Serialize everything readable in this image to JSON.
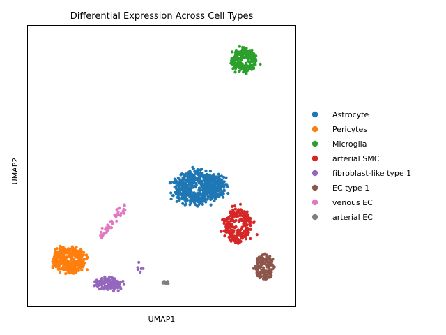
{
  "chart_data": {
    "type": "scatter",
    "title": "Differential Expression Across Cell Types",
    "xlabel": "UMAP1",
    "ylabel": "UMAP2",
    "xlim": [
      0,
      10
    ],
    "ylim": [
      0,
      10
    ],
    "ticks_shown": false,
    "grid": false,
    "legend_position": "right",
    "series": [
      {
        "name": "Astrocyte",
        "color": "#1f77b4",
        "clusters": [
          {
            "center": [
              6.35,
              4.25
            ],
            "spread": [
              1.45,
              0.95
            ],
            "n": 560
          },
          {
            "center": [
              7.0,
              4.3
            ],
            "spread": [
              0.75,
              0.6
            ],
            "n": 120
          }
        ]
      },
      {
        "name": "Pericytes",
        "color": "#ff7f0e",
        "clusters": [
          {
            "center": [
              1.55,
              1.65
            ],
            "spread": [
              1.05,
              0.75
            ],
            "n": 340
          }
        ]
      },
      {
        "name": " Microglia",
        "color": "#2ca02c",
        "clusters": [
          {
            "center": [
              8.1,
              8.75
            ],
            "spread": [
              0.8,
              0.7
            ],
            "n": 240
          }
        ]
      },
      {
        "name": "arterial SMC",
        "color": "#d62728",
        "clusters": [
          {
            "center": [
              7.85,
              2.9
            ],
            "spread": [
              0.85,
              1.05
            ],
            "n": 220
          }
        ]
      },
      {
        "name": "fibroblast-like type 1",
        "color": "#9467bd",
        "clusters": [
          {
            "center": [
              3.0,
              0.8
            ],
            "spread": [
              0.85,
              0.38
            ],
            "n": 120
          },
          {
            "center": [
              4.2,
              1.4
            ],
            "spread": [
              0.25,
              0.35
            ],
            "n": 6
          }
        ]
      },
      {
        "name": "EC type 1",
        "color": "#8c564b",
        "clusters": [
          {
            "center": [
              8.85,
              1.4
            ],
            "spread": [
              0.6,
              0.75
            ],
            "n": 140
          }
        ]
      },
      {
        "name": "venous EC",
        "color": "#e377c2",
        "clusters": [
          {
            "line": [
              [
                2.75,
                2.5
              ],
              [
                3.6,
                3.6
              ]
            ],
            "jitter": 0.07,
            "n": 45
          }
        ]
      },
      {
        "name": "arterial EC",
        "color": "#7f7f7f",
        "clusters": [
          {
            "center": [
              5.15,
              0.85
            ],
            "spread": [
              0.2,
              0.08
            ],
            "n": 12
          }
        ]
      }
    ]
  }
}
